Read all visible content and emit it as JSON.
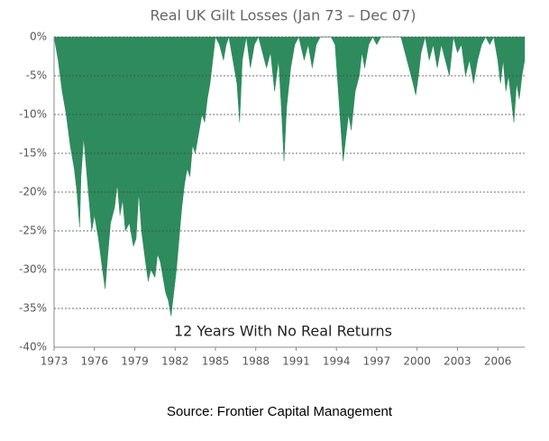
{
  "chart_data": {
    "type": "area",
    "title": "Real UK Gilt Losses (Jan 73 – Dec 07)",
    "annotation": "12 Years With No Real Returns",
    "source": "Source: Frontier Capital Management",
    "color": "#2e8b5e",
    "grid": true,
    "xlim": [
      1973,
      2008
    ],
    "xticks": [
      1973,
      1976,
      1979,
      1982,
      1985,
      1988,
      1991,
      1994,
      1997,
      2000,
      2003,
      2006
    ],
    "ylim": [
      -40,
      0
    ],
    "yticks": [
      {
        "value": 0,
        "label": "0%"
      },
      {
        "value": -5,
        "label": "-5%"
      },
      {
        "value": -10,
        "label": "-10%"
      },
      {
        "value": -15,
        "label": "-15%"
      },
      {
        "value": -20,
        "label": "-20%"
      },
      {
        "value": -25,
        "label": "-25%"
      },
      {
        "value": -30,
        "label": "-30%"
      },
      {
        "value": -35,
        "label": "-35%"
      },
      {
        "value": -40,
        "label": "-40%"
      }
    ],
    "x": [
      1973.0,
      1973.3,
      1973.6,
      1973.9,
      1974.2,
      1974.5,
      1974.7,
      1974.9,
      1975.0,
      1975.2,
      1975.4,
      1975.6,
      1975.8,
      1976.0,
      1976.3,
      1976.6,
      1976.8,
      1977.0,
      1977.2,
      1977.5,
      1977.7,
      1977.9,
      1978.1,
      1978.3,
      1978.6,
      1978.9,
      1979.1,
      1979.3,
      1979.5,
      1979.8,
      1980.0,
      1980.2,
      1980.5,
      1980.7,
      1980.9,
      1981.1,
      1981.3,
      1981.5,
      1981.7,
      1981.9,
      1982.1,
      1982.3,
      1982.5,
      1982.7,
      1982.9,
      1983.1,
      1983.3,
      1983.5,
      1983.8,
      1984.0,
      1984.2,
      1984.4,
      1984.6,
      1984.8,
      1985.0,
      1985.3,
      1985.6,
      1985.8,
      1986.0,
      1986.3,
      1986.6,
      1986.8,
      1987.0,
      1987.3,
      1987.6,
      1987.9,
      1988.2,
      1988.5,
      1988.8,
      1989.1,
      1989.4,
      1989.7,
      1989.9,
      1990.1,
      1990.3,
      1990.6,
      1990.9,
      1991.2,
      1991.6,
      1991.9,
      1992.2,
      1992.5,
      1992.8,
      1993.3,
      1993.6,
      1993.9,
      1994.1,
      1994.3,
      1994.5,
      1994.7,
      1994.9,
      1995.1,
      1995.4,
      1995.7,
      1995.9,
      1996.1,
      1996.4,
      1996.7,
      1997.0,
      1997.3,
      1997.6,
      1998.0,
      1998.4,
      1998.8,
      1999.1,
      1999.4,
      1999.7,
      1999.9,
      2000.1,
      2000.3,
      2000.6,
      2000.9,
      2001.2,
      2001.5,
      2001.8,
      2002.1,
      2002.4,
      2002.7,
      2003.0,
      2003.3,
      2003.6,
      2003.9,
      2004.2,
      2004.5,
      2004.8,
      2005.1,
      2005.4,
      2005.7,
      2006.0,
      2006.2,
      2006.4,
      2006.6,
      2006.8,
      2007.0,
      2007.2,
      2007.4,
      2007.6,
      2007.8,
      2008.0
    ],
    "values": [
      0,
      -3,
      -7,
      -10,
      -14,
      -17,
      -20,
      -24.5,
      -18,
      -13,
      -17,
      -21,
      -25,
      -23,
      -26,
      -30,
      -32.5,
      -28,
      -24,
      -22,
      -19,
      -23,
      -21,
      -25,
      -24,
      -27,
      -26,
      -20,
      -25,
      -29,
      -31.5,
      -30,
      -31,
      -28,
      -29,
      -31,
      -33,
      -34,
      -36,
      -33,
      -30,
      -26,
      -22,
      -19,
      -17,
      -18,
      -14,
      -15,
      -12,
      -10,
      -11,
      -8,
      -6,
      -3,
      0,
      -1,
      -3,
      -1,
      0,
      -3,
      -6,
      -11,
      -3,
      0,
      -4,
      -1,
      0,
      -2,
      -4,
      -2,
      -7,
      -3,
      -9,
      -16,
      -9,
      -4,
      -1,
      0,
      -3,
      -1,
      -4,
      -1,
      0,
      0,
      0,
      -1,
      -6,
      -11,
      -16,
      -13,
      -10,
      -12,
      -7,
      -5,
      -2,
      -4,
      -1,
      0,
      -1,
      0,
      0,
      0,
      0,
      0,
      -2,
      -4,
      -6,
      -7.5,
      -5,
      -2,
      0,
      -3,
      -1,
      -4,
      -1,
      -3,
      -5,
      0,
      -2,
      -1,
      -5,
      -3,
      -6,
      -3,
      -1,
      0,
      -1,
      0,
      -3,
      -6,
      -3,
      -7,
      -5,
      -8,
      -11,
      -6,
      -8,
      -5,
      -3
    ]
  }
}
